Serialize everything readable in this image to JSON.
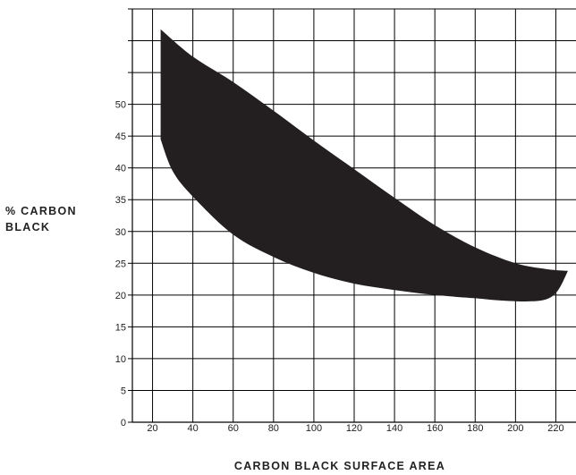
{
  "chart_data": {
    "type": "area",
    "xlabel": "CARBON BLACK SURFACE AREA",
    "ylabel_lines": [
      "% CARBON",
      "BLACK"
    ],
    "xlim": [
      10,
      230
    ],
    "ylim": [
      0,
      65
    ],
    "x_ticks": [
      20,
      40,
      60,
      80,
      100,
      120,
      140,
      160,
      180,
      200,
      220
    ],
    "y_ticks": [
      0,
      5,
      10,
      15,
      20,
      25,
      30,
      35,
      40,
      45,
      50
    ],
    "grid": true,
    "series": [
      {
        "upper_bound": {
          "x": [
            24,
            40,
            60,
            80,
            100,
            120,
            140,
            160,
            180,
            200,
            215,
            226
          ],
          "y": [
            61.8,
            57.5,
            53.5,
            49,
            44.3,
            39.8,
            35.3,
            31,
            27.5,
            25,
            24.1,
            23.8
          ]
        },
        "lower_bound": {
          "x": [
            24,
            30,
            40,
            60,
            80,
            100,
            120,
            140,
            160,
            180,
            190,
            205,
            215,
            221,
            226
          ],
          "y": [
            44.5,
            39.5,
            35.5,
            29.5,
            26,
            23.5,
            21.8,
            20.8,
            20,
            19.5,
            19.2,
            19,
            19.3,
            20.7,
            23.8
          ]
        }
      }
    ],
    "colors": {
      "fill": "#231f20",
      "grid": "#000000",
      "background": "#ffffff"
    }
  }
}
